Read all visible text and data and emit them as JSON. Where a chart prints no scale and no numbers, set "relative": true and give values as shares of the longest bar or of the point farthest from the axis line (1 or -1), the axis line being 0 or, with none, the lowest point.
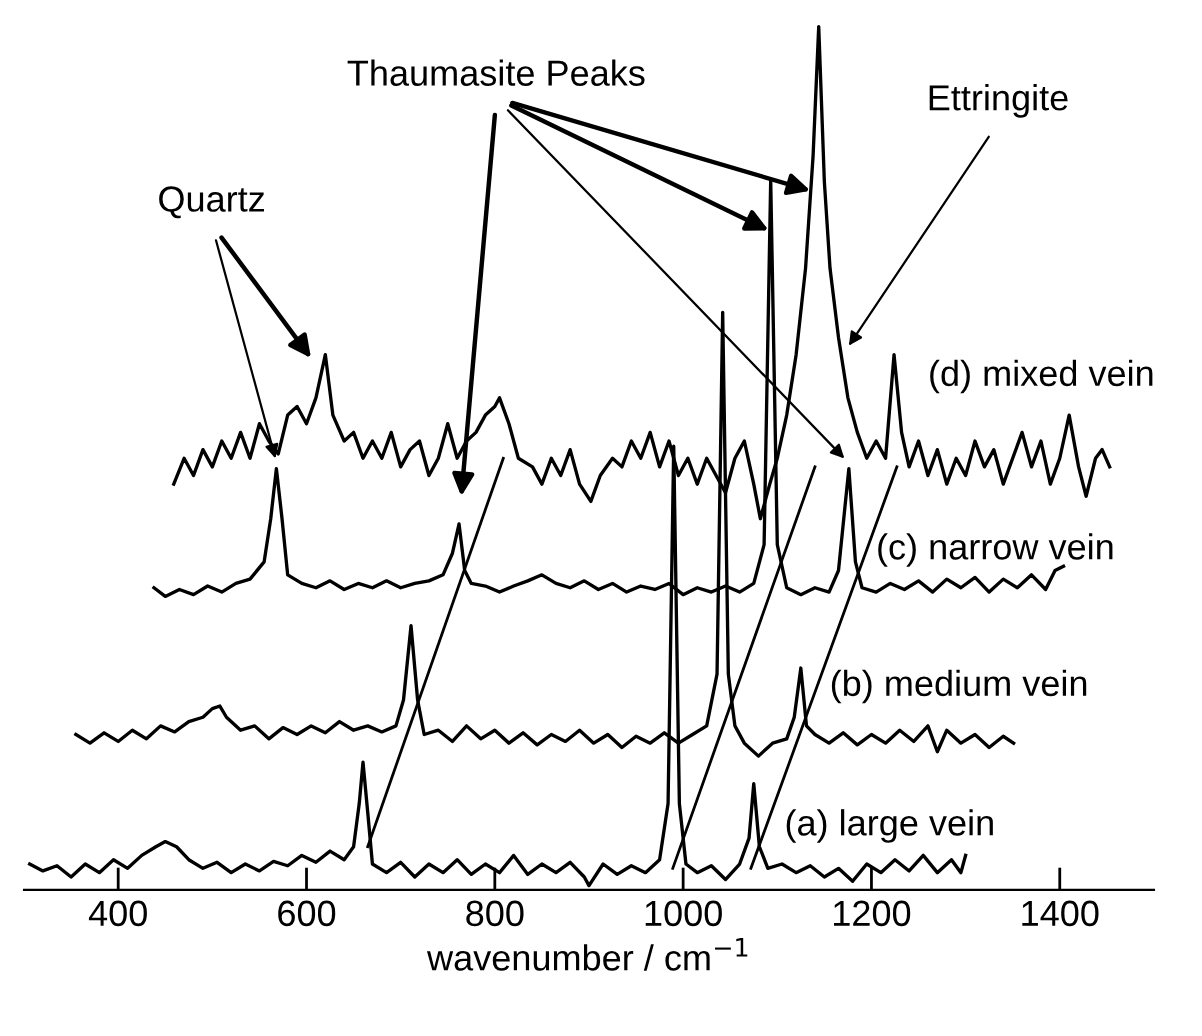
{
  "chart_data": {
    "type": "line",
    "relative": true,
    "xlabel": "wavenumber / cm$^{−1}$",
    "xlim": [
      300,
      1500
    ],
    "xticks": [
      400,
      600,
      800,
      1000,
      1200,
      1400
    ],
    "annotations": [
      "Thaumasite Peaks",
      "Quartz",
      "Ettringite",
      "(d) mixed vein",
      "(c) narrow vein",
      "(b) medium vein",
      "(a) large vein"
    ],
    "series": [
      {
        "color": "#000000",
        "x": [
          306,
          320,
          335,
          350,
          365,
          380,
          395,
          410,
          425,
          440,
          450,
          462,
          475,
          490,
          505,
          520,
          535,
          550,
          565,
          580,
          595,
          610,
          625,
          640,
          650,
          656,
          660,
          665,
          670,
          685,
          700,
          715,
          730,
          745,
          760,
          775,
          790,
          805,
          820,
          835,
          850,
          865,
          880,
          895,
          900,
          915,
          930,
          945,
          960,
          975,
          984,
          990,
          996,
          1003,
          1015,
          1030,
          1045,
          1060,
          1070,
          1075,
          1081,
          1090,
          1105,
          1120,
          1135,
          1150,
          1165,
          1180,
          1195,
          1210,
          1225,
          1240,
          1255,
          1270,
          1285,
          1295,
          1300
        ],
        "values": [
          0.03,
          0.022,
          0.028,
          0.015,
          0.03,
          0.02,
          0.035,
          0.025,
          0.04,
          0.05,
          0.056,
          0.05,
          0.035,
          0.025,
          0.032,
          0.02,
          0.03,
          0.022,
          0.033,
          0.028,
          0.04,
          0.032,
          0.045,
          0.035,
          0.05,
          0.1,
          0.148,
          0.09,
          0.03,
          0.02,
          0.032,
          0.015,
          0.03,
          0.02,
          0.035,
          0.018,
          0.03,
          0.02,
          0.04,
          0.018,
          0.03,
          0.02,
          0.032,
          0.015,
          0.005,
          0.03,
          0.018,
          0.028,
          0.02,
          0.035,
          0.1,
          0.514,
          0.1,
          0.03,
          0.02,
          0.028,
          0.012,
          0.03,
          0.06,
          0.123,
          0.05,
          0.025,
          0.03,
          0.02,
          0.028,
          0.015,
          0.025,
          0.01,
          0.03,
          0.02,
          0.035,
          0.022,
          0.04,
          0.02,
          0.035,
          0.02,
          0.04
        ]
      },
      {
        "color": "#000000",
        "x": [
          355,
          370,
          385,
          400,
          415,
          430,
          445,
          460,
          475,
          490,
          500,
          508,
          515,
          530,
          545,
          560,
          575,
          590,
          605,
          620,
          635,
          650,
          665,
          680,
          695,
          703,
          711,
          718,
          725,
          740,
          755,
          770,
          785,
          800,
          815,
          830,
          845,
          860,
          875,
          890,
          905,
          920,
          935,
          950,
          965,
          980,
          995,
          1010,
          1025,
          1036,
          1042,
          1048,
          1055,
          1065,
          1080,
          1095,
          1110,
          1118,
          1125,
          1131,
          1140,
          1155,
          1170,
          1185,
          1200,
          1215,
          1230,
          1245,
          1260,
          1270,
          1280,
          1295,
          1310,
          1325,
          1340,
          1351
        ],
        "values": [
          0.18,
          0.17,
          0.182,
          0.172,
          0.185,
          0.175,
          0.19,
          0.183,
          0.195,
          0.2,
          0.21,
          0.213,
          0.2,
          0.185,
          0.19,
          0.175,
          0.188,
          0.18,
          0.19,
          0.182,
          0.195,
          0.185,
          0.19,
          0.183,
          0.19,
          0.22,
          0.306,
          0.22,
          0.18,
          0.185,
          0.172,
          0.19,
          0.175,
          0.185,
          0.17,
          0.182,
          0.168,
          0.18,
          0.172,
          0.185,
          0.17,
          0.18,
          0.165,
          0.178,
          0.17,
          0.182,
          0.17,
          0.18,
          0.19,
          0.25,
          0.669,
          0.25,
          0.19,
          0.17,
          0.155,
          0.17,
          0.175,
          0.2,
          0.257,
          0.19,
          0.18,
          0.17,
          0.182,
          0.168,
          0.18,
          0.17,
          0.185,
          0.172,
          0.19,
          0.16,
          0.185,
          0.17,
          0.18,
          0.165,
          0.178,
          0.17
        ]
      },
      {
        "color": "#000000",
        "x": [
          438,
          450,
          465,
          480,
          495,
          510,
          525,
          540,
          555,
          562,
          568,
          574,
          580,
          595,
          610,
          625,
          640,
          655,
          670,
          685,
          700,
          715,
          730,
          745,
          755,
          762,
          768,
          775,
          790,
          805,
          820,
          835,
          850,
          865,
          880,
          895,
          910,
          925,
          940,
          955,
          970,
          985,
          1000,
          1015,
          1030,
          1045,
          1060,
          1075,
          1086,
          1093,
          1100,
          1110,
          1125,
          1140,
          1155,
          1165,
          1176,
          1183,
          1190,
          1205,
          1220,
          1235,
          1250,
          1265,
          1280,
          1295,
          1310,
          1325,
          1340,
          1355,
          1370,
          1385,
          1395,
          1404
        ],
        "values": [
          0.35,
          0.34,
          0.348,
          0.342,
          0.352,
          0.345,
          0.355,
          0.36,
          0.38,
          0.43,
          0.488,
          0.43,
          0.365,
          0.355,
          0.35,
          0.358,
          0.348,
          0.355,
          0.35,
          0.358,
          0.35,
          0.355,
          0.358,
          0.365,
          0.39,
          0.424,
          0.37,
          0.355,
          0.352,
          0.345,
          0.352,
          0.358,
          0.365,
          0.355,
          0.35,
          0.358,
          0.348,
          0.355,
          0.345,
          0.352,
          0.348,
          0.355,
          0.342,
          0.35,
          0.345,
          0.352,
          0.345,
          0.355,
          0.4,
          0.822,
          0.4,
          0.35,
          0.342,
          0.35,
          0.345,
          0.37,
          0.488,
          0.38,
          0.35,
          0.345,
          0.355,
          0.348,
          0.358,
          0.345,
          0.36,
          0.35,
          0.362,
          0.345,
          0.36,
          0.35,
          0.365,
          0.348,
          0.37,
          0.375
        ]
      },
      {
        "color": "#000000",
        "x": [
          459,
          470,
          480,
          490,
          500,
          510,
          520,
          530,
          540,
          550,
          560,
          570,
          580,
          590,
          600,
          610,
          620,
          628,
          640,
          650,
          660,
          670,
          680,
          690,
          700,
          710,
          720,
          730,
          740,
          750,
          760,
          770,
          780,
          790,
          800,
          805,
          815,
          825,
          840,
          850,
          860,
          870,
          880,
          890,
          902,
          912,
          925,
          935,
          945,
          955,
          965,
          975,
          985,
          995,
          1005,
          1015,
          1025,
          1035,
          1045,
          1055,
          1065,
          1075,
          1082,
          1092,
          1100,
          1110,
          1120,
          1130,
          1138,
          1144,
          1150,
          1156,
          1165,
          1175,
          1185,
          1195,
          1205,
          1215,
          1224,
          1232,
          1240,
          1250,
          1260,
          1270,
          1280,
          1290,
          1300,
          1310,
          1320,
          1330,
          1340,
          1350,
          1360,
          1370,
          1380,
          1390,
          1400,
          1410,
          1420,
          1428,
          1438,
          1445,
          1453
        ],
        "values": [
          0.47,
          0.5,
          0.48,
          0.51,
          0.49,
          0.52,
          0.5,
          0.53,
          0.5,
          0.54,
          0.52,
          0.505,
          0.55,
          0.56,
          0.54,
          0.57,
          0.62,
          0.55,
          0.52,
          0.53,
          0.5,
          0.52,
          0.5,
          0.53,
          0.49,
          0.51,
          0.52,
          0.48,
          0.5,
          0.54,
          0.5,
          0.52,
          0.53,
          0.55,
          0.56,
          0.57,
          0.54,
          0.5,
          0.49,
          0.47,
          0.5,
          0.48,
          0.51,
          0.47,
          0.45,
          0.48,
          0.5,
          0.49,
          0.52,
          0.5,
          0.53,
          0.49,
          0.52,
          0.48,
          0.5,
          0.47,
          0.5,
          0.48,
          0.46,
          0.5,
          0.52,
          0.47,
          0.43,
          0.47,
          0.5,
          0.55,
          0.62,
          0.72,
          0.85,
          1.0,
          0.82,
          0.72,
          0.64,
          0.57,
          0.53,
          0.5,
          0.52,
          0.5,
          0.62,
          0.53,
          0.49,
          0.52,
          0.48,
          0.51,
          0.47,
          0.5,
          0.48,
          0.52,
          0.49,
          0.51,
          0.47,
          0.5,
          0.53,
          0.49,
          0.52,
          0.47,
          0.5,
          0.55,
          0.49,
          0.456,
          0.5,
          0.51,
          0.49
        ]
      },
      {
        "color": "#000000",
        "x": [
          665,
          809
        ],
        "values": [
          0.05,
          0.5
        ]
      },
      {
        "color": "#000000",
        "x": [
          989,
          1140
        ],
        "values": [
          0.025,
          0.49
        ]
      },
      {
        "color": "#000000",
        "x": [
          1072,
          1227
        ],
        "values": [
          0.025,
          0.49
        ]
      }
    ]
  }
}
